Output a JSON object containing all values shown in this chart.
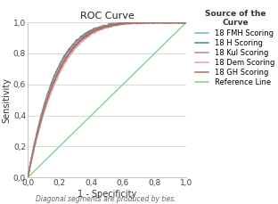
{
  "title": "ROC Curve",
  "xlabel": "1 - Specificity",
  "ylabel": "Sensitivity",
  "footnote": "Diagonal segments are produced by ties.",
  "legend_title": "Source of the\nCurve",
  "legend_entries": [
    {
      "label": "18 FMH Scoring",
      "color": "#7BAFD4",
      "lw": 1.1
    },
    {
      "label": "18 H Scoring",
      "color": "#4A8A7A",
      "lw": 1.1
    },
    {
      "label": "18 Kul Scoring",
      "color": "#C47A9A",
      "lw": 1.1
    },
    {
      "label": "18 Dem Scoring",
      "color": "#F0A0A0",
      "lw": 1.1
    },
    {
      "label": "18 GH Scoring",
      "color": "#A07060",
      "lw": 1.1
    },
    {
      "label": "Reference Line",
      "color": "#88CC88",
      "lw": 1.1
    }
  ],
  "xticks": [
    0.0,
    0.2,
    0.4,
    0.6,
    0.8,
    1.0
  ],
  "yticks": [
    0.0,
    0.2,
    0.4,
    0.6,
    0.8,
    1.0
  ],
  "xlim": [
    0.0,
    1.0
  ],
  "ylim": [
    0.0,
    1.0
  ],
  "bg_color": "#FFFFFF",
  "plot_bg_color": "#FFFFFF",
  "grid_color": "#CCCCCC",
  "title_fontsize": 8,
  "axis_label_fontsize": 7,
  "tick_fontsize": 6.5,
  "legend_fontsize": 6,
  "legend_title_fontsize": 6.5,
  "footnote_fontsize": 5.5,
  "alphas": [
    5.2,
    5.8,
    5.5,
    5.0,
    5.3
  ]
}
